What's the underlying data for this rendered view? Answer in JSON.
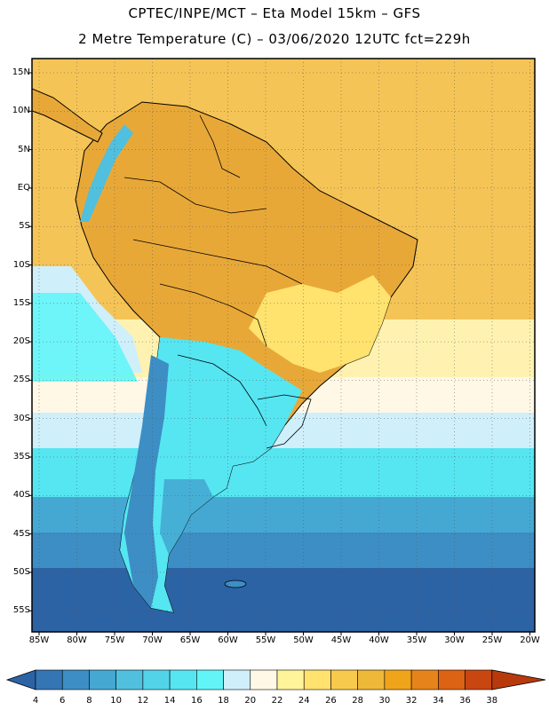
{
  "header": {
    "title_line1": "CPTEC/INPE/MCT –  Eta Model 15km – GFS",
    "title_line2": "2 Metre Temperature (C) – 03/06/2020 12UTC fct=229h"
  },
  "map": {
    "lat_ticks": [
      "15N",
      "10N",
      "5N",
      "EQ",
      "5S",
      "10S",
      "15S",
      "20S",
      "25S",
      "30S",
      "35S",
      "40S",
      "45S",
      "50S",
      "55S"
    ],
    "lon_ticks": [
      "85W",
      "80W",
      "75W",
      "70W",
      "65W",
      "60W",
      "55W",
      "50W",
      "45W",
      "40W",
      "35W",
      "30W",
      "25W",
      "20W"
    ],
    "ocean_color": "#f5c456",
    "land_color": "#e5a735"
  },
  "colorbar": {
    "labels": [
      "4",
      "6",
      "8",
      "10",
      "12",
      "14",
      "16",
      "18",
      "20",
      "22",
      "24",
      "26",
      "28",
      "30",
      "32",
      "34",
      "36",
      "38"
    ],
    "colors": [
      "#2c63a5",
      "#3476b4",
      "#3d8ec4",
      "#45a8d3",
      "#50c0de",
      "#52d3e8",
      "#55e6f2",
      "#62f5f8",
      "#cfeffb",
      "#fff8e6",
      "#fff49a",
      "#ffe36e",
      "#f7ca4e",
      "#eeb838",
      "#f0a419",
      "#e6831a",
      "#dc6214",
      "#c84710",
      "#b83a0c"
    ]
  }
}
